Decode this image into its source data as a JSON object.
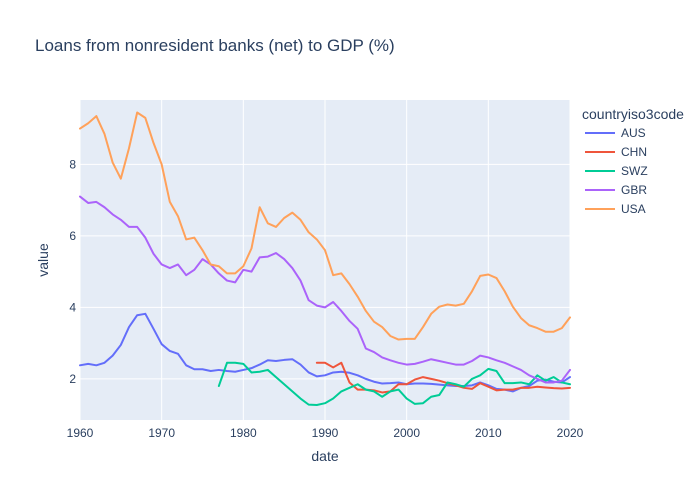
{
  "chart_data": {
    "type": "line",
    "title": "Loans from nonresident banks (net) to GDP (%)",
    "xlabel": "date",
    "ylabel": "value",
    "xlim": [
      1960,
      2020
    ],
    "ylim": [
      0.85,
      9.8
    ],
    "x_ticks": [
      1960,
      1970,
      1980,
      1990,
      2000,
      2010,
      2020
    ],
    "y_ticks": [
      2,
      4,
      6,
      8
    ],
    "grid": true,
    "legend_title": "countryiso3code",
    "legend_position": "top-right",
    "plot_background": "#e5ecf6",
    "series": [
      {
        "name": "AUS",
        "color": "#636efa",
        "x": [
          1960,
          1961,
          1962,
          1963,
          1964,
          1965,
          1966,
          1967,
          1968,
          1969,
          1970,
          1971,
          1972,
          1973,
          1974,
          1975,
          1976,
          1977,
          1978,
          1979,
          1980,
          1981,
          1982,
          1983,
          1984,
          1985,
          1986,
          1987,
          1988,
          1989,
          1990,
          1991,
          1992,
          1993,
          1994,
          1995,
          1996,
          1997,
          1998,
          1999,
          2000,
          2001,
          2002,
          2003,
          2004,
          2005,
          2006,
          2007,
          2008,
          2009,
          2010,
          2011,
          2012,
          2013,
          2014,
          2015,
          2016,
          2017,
          2018,
          2019,
          2020
        ],
        "y": [
          2.38,
          2.42,
          2.38,
          2.45,
          2.65,
          2.95,
          3.45,
          3.78,
          3.82,
          3.4,
          2.97,
          2.78,
          2.7,
          2.38,
          2.27,
          2.27,
          2.22,
          2.25,
          2.22,
          2.2,
          2.25,
          2.3,
          2.4,
          2.52,
          2.5,
          2.53,
          2.55,
          2.4,
          2.18,
          2.07,
          2.1,
          2.18,
          2.2,
          2.17,
          2.1,
          2.0,
          1.92,
          1.87,
          1.88,
          1.9,
          1.85,
          1.87,
          1.87,
          1.86,
          1.84,
          1.82,
          1.8,
          1.8,
          1.82,
          1.9,
          1.82,
          1.72,
          1.7,
          1.65,
          1.75,
          1.8,
          1.95,
          1.98,
          1.92,
          1.9,
          2.05
        ]
      },
      {
        "name": "CHN",
        "color": "#ef553b",
        "x": [
          1989,
          1990,
          1991,
          1992,
          1993,
          1994,
          1995,
          1996,
          1997,
          1998,
          1999,
          2000,
          2001,
          2002,
          2003,
          2004,
          2005,
          2006,
          2007,
          2008,
          2009,
          2010,
          2011,
          2012,
          2013,
          2014,
          2015,
          2016,
          2017,
          2018,
          2019,
          2020
        ],
        "y": [
          2.45,
          2.45,
          2.32,
          2.45,
          1.9,
          1.7,
          1.7,
          1.68,
          1.62,
          1.65,
          1.85,
          1.85,
          1.98,
          2.05,
          2.0,
          1.95,
          1.88,
          1.82,
          1.75,
          1.72,
          1.88,
          1.78,
          1.68,
          1.7,
          1.7,
          1.75,
          1.75,
          1.78,
          1.76,
          1.74,
          1.73,
          1.75
        ]
      },
      {
        "name": "SWZ",
        "color": "#00cc96",
        "x": [
          1977,
          1978,
          1979,
          1980,
          1981,
          1982,
          1983,
          1984,
          1985,
          1986,
          1987,
          1988,
          1989,
          1990,
          1991,
          1992,
          1993,
          1994,
          1995,
          1996,
          1997,
          1998,
          1999,
          2000,
          2001,
          2002,
          2003,
          2004,
          2005,
          2006,
          2007,
          2008,
          2009,
          2010,
          2011,
          2012,
          2013,
          2014,
          2015,
          2016,
          2017,
          2018,
          2019,
          2020
        ],
        "y": [
          1.8,
          2.45,
          2.45,
          2.42,
          2.18,
          2.2,
          2.25,
          2.05,
          1.85,
          1.65,
          1.45,
          1.28,
          1.27,
          1.32,
          1.45,
          1.65,
          1.75,
          1.85,
          1.7,
          1.65,
          1.5,
          1.65,
          1.7,
          1.45,
          1.3,
          1.32,
          1.5,
          1.55,
          1.9,
          1.85,
          1.78,
          2.0,
          2.1,
          2.28,
          2.22,
          1.88,
          1.88,
          1.9,
          1.85,
          2.1,
          1.95,
          2.05,
          1.9,
          1.85
        ]
      },
      {
        "name": "GBR",
        "color": "#ab63fa",
        "x": [
          1960,
          1961,
          1962,
          1963,
          1964,
          1965,
          1966,
          1967,
          1968,
          1969,
          1970,
          1971,
          1972,
          1973,
          1974,
          1975,
          1976,
          1977,
          1978,
          1979,
          1980,
          1981,
          1982,
          1983,
          1984,
          1985,
          1986,
          1987,
          1988,
          1989,
          1990,
          1991,
          1992,
          1993,
          1994,
          1995,
          1996,
          1997,
          1998,
          1999,
          2000,
          2001,
          2002,
          2003,
          2004,
          2005,
          2006,
          2007,
          2008,
          2009,
          2010,
          2011,
          2012,
          2013,
          2014,
          2015,
          2016,
          2017,
          2018,
          2019,
          2020
        ],
        "y": [
          7.1,
          6.92,
          6.95,
          6.8,
          6.6,
          6.45,
          6.25,
          6.25,
          5.95,
          5.5,
          5.2,
          5.1,
          5.2,
          4.9,
          5.05,
          5.35,
          5.2,
          4.95,
          4.75,
          4.7,
          5.05,
          5.0,
          5.4,
          5.42,
          5.52,
          5.35,
          5.1,
          4.75,
          4.2,
          4.05,
          4.0,
          4.15,
          3.9,
          3.62,
          3.4,
          2.85,
          2.75,
          2.6,
          2.52,
          2.45,
          2.4,
          2.42,
          2.48,
          2.55,
          2.5,
          2.45,
          2.4,
          2.4,
          2.5,
          2.65,
          2.6,
          2.52,
          2.45,
          2.35,
          2.25,
          2.1,
          2.0,
          1.9,
          1.9,
          1.95,
          2.25
        ]
      },
      {
        "name": "USA",
        "color": "#ffa15a",
        "x": [
          1960,
          1961,
          1962,
          1963,
          1964,
          1965,
          1966,
          1967,
          1968,
          1969,
          1970,
          1971,
          1972,
          1973,
          1974,
          1975,
          1976,
          1977,
          1978,
          1979,
          1980,
          1981,
          1982,
          1983,
          1984,
          1985,
          1986,
          1987,
          1988,
          1989,
          1990,
          1991,
          1992,
          1993,
          1994,
          1995,
          1996,
          1997,
          1998,
          1999,
          2000,
          2001,
          2002,
          2003,
          2004,
          2005,
          2006,
          2007,
          2008,
          2009,
          2010,
          2011,
          2012,
          2013,
          2014,
          2015,
          2016,
          2017,
          2018,
          2019,
          2020
        ],
        "y": [
          9.0,
          9.15,
          9.35,
          8.85,
          8.05,
          7.6,
          8.45,
          9.45,
          9.3,
          8.6,
          8.0,
          6.95,
          6.55,
          5.9,
          5.95,
          5.6,
          5.2,
          5.15,
          4.95,
          4.95,
          5.15,
          5.65,
          6.8,
          6.35,
          6.25,
          6.5,
          6.65,
          6.45,
          6.1,
          5.9,
          5.6,
          4.9,
          4.95,
          4.65,
          4.3,
          3.9,
          3.6,
          3.45,
          3.2,
          3.1,
          3.12,
          3.12,
          3.45,
          3.82,
          4.02,
          4.08,
          4.05,
          4.1,
          4.45,
          4.88,
          4.92,
          4.82,
          4.45,
          4.02,
          3.7,
          3.5,
          3.42,
          3.32,
          3.32,
          3.42,
          3.72
        ]
      }
    ]
  }
}
